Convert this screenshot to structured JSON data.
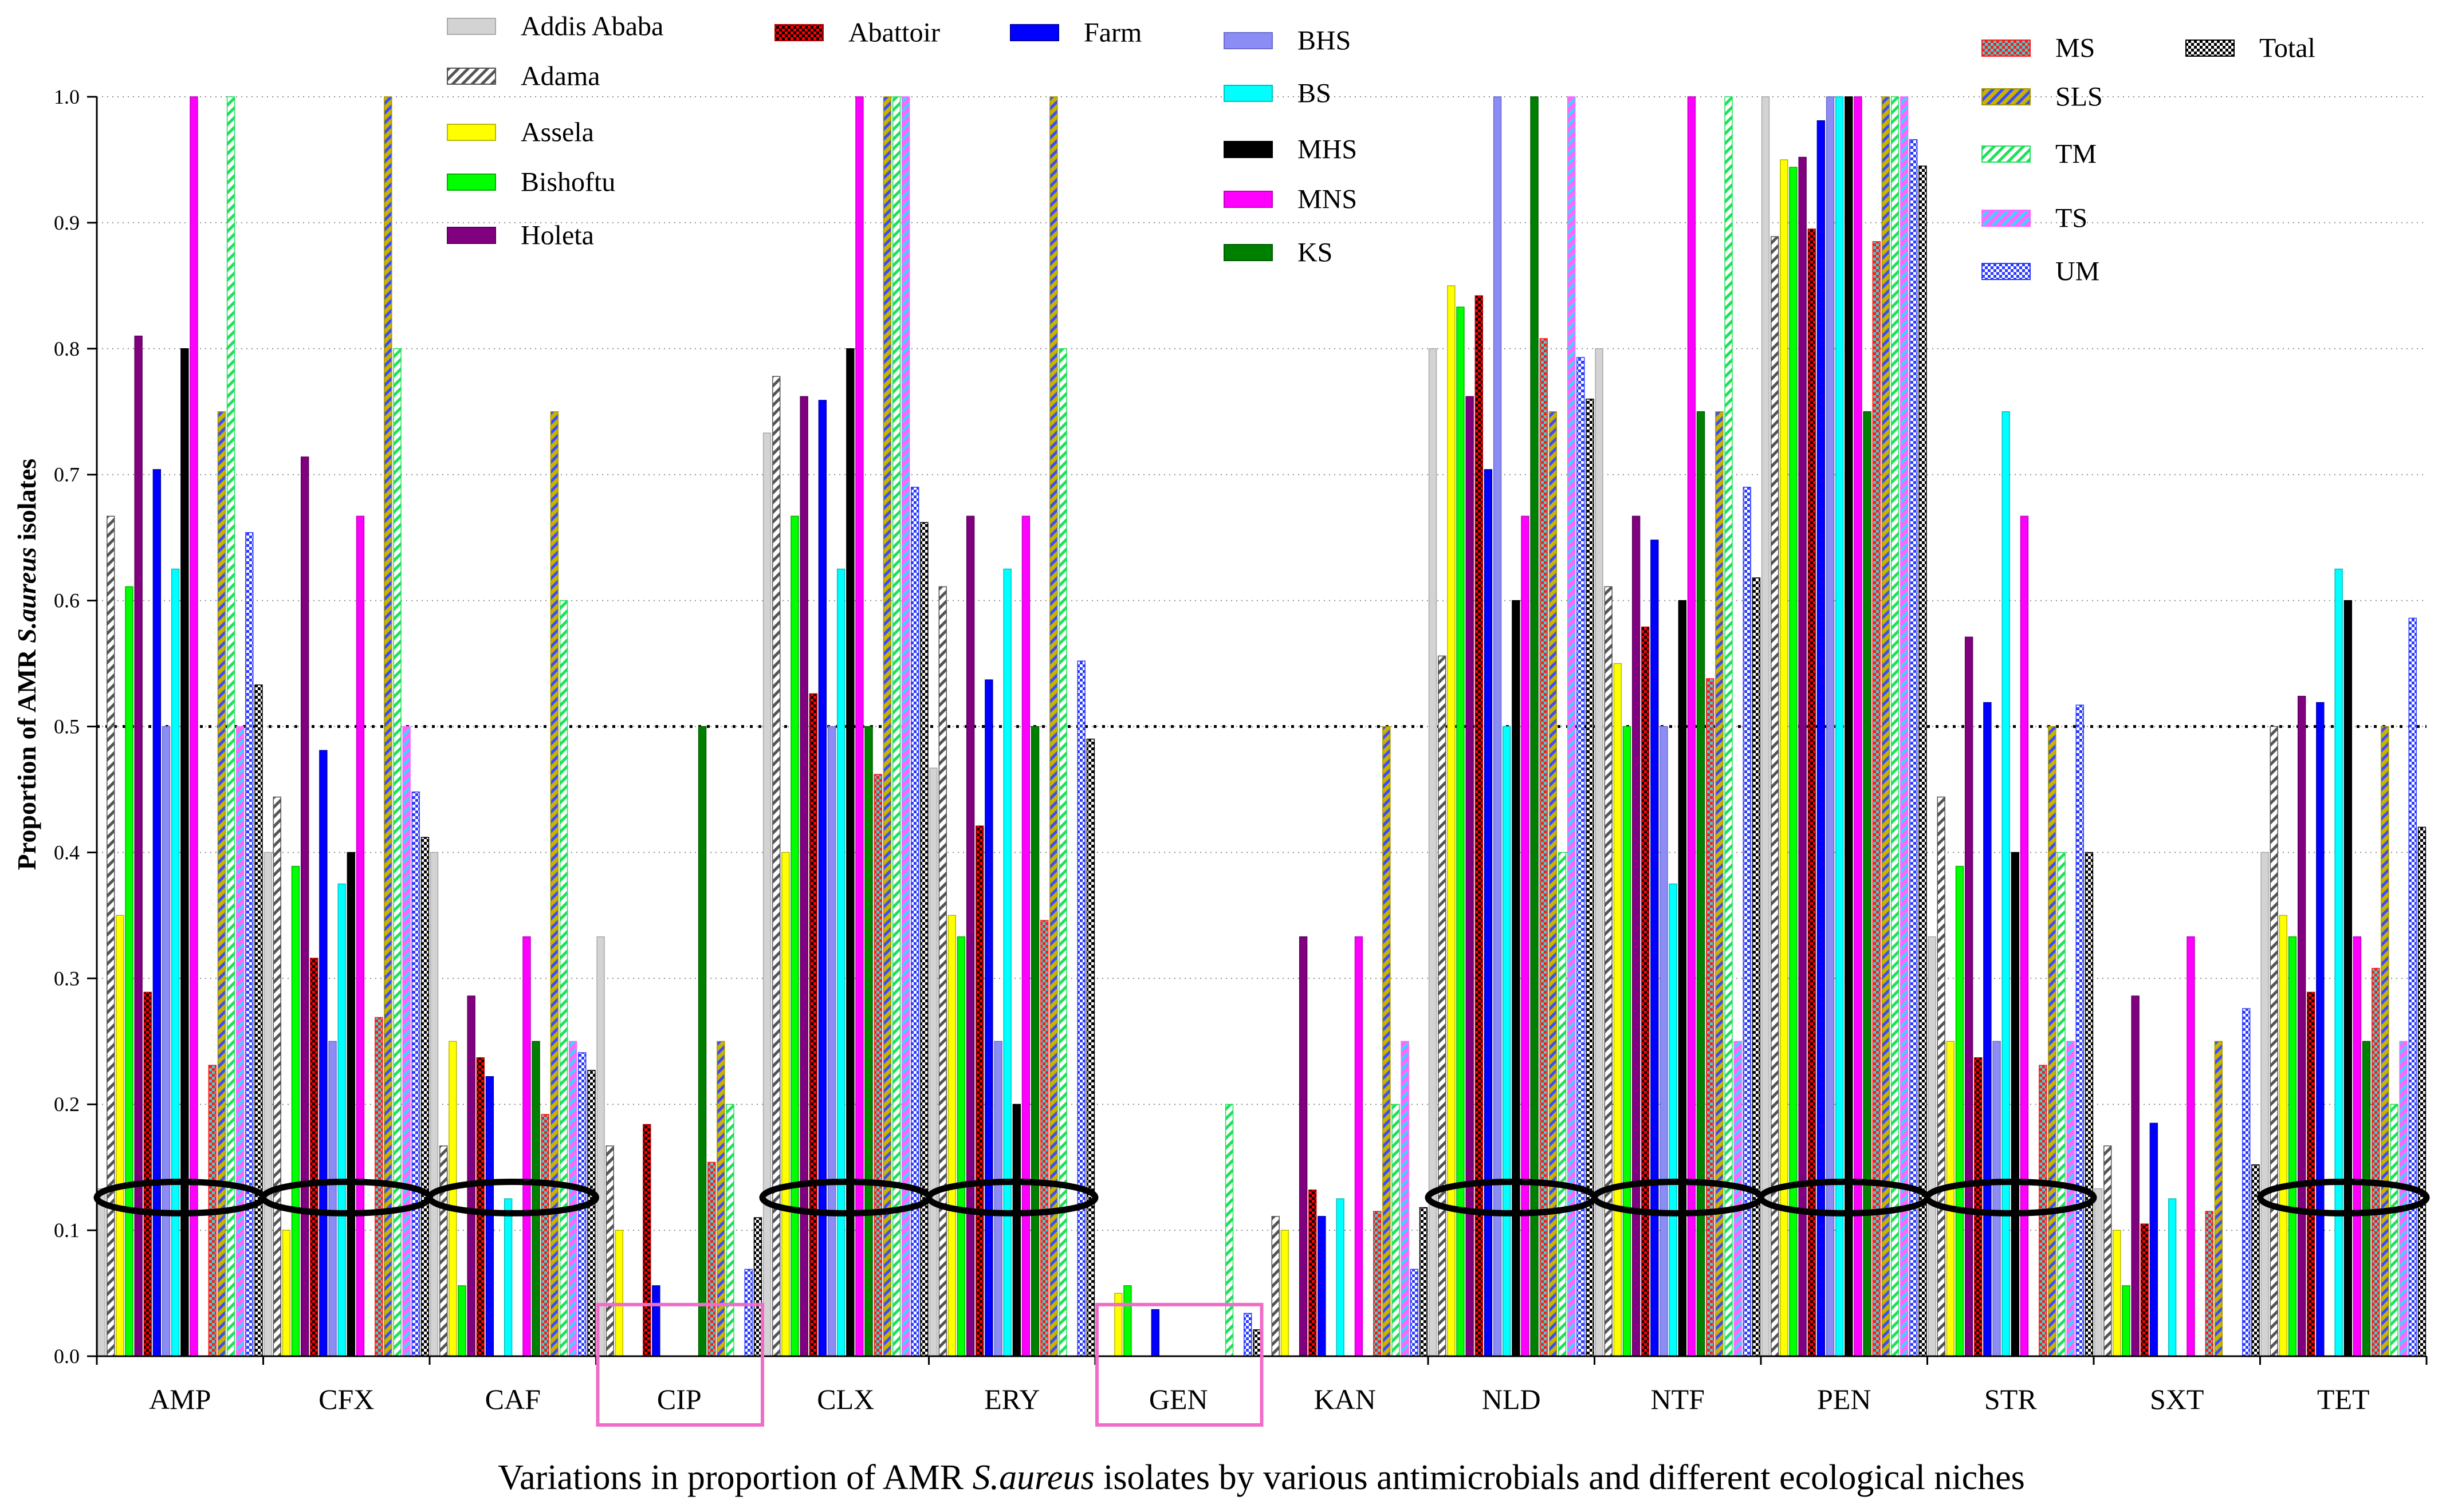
{
  "chart_data": {
    "type": "bar",
    "title_parts": [
      "Variations in proportion of AMR ",
      "S.aureus",
      " isolates by various antimicrobials and different ecological niches"
    ],
    "ylabel_parts": [
      "Proportion of AMR ",
      "S.aureus",
      " isolates"
    ],
    "xlabel": "",
    "ylim": [
      0,
      1.0
    ],
    "yticks": [
      "0.0",
      "0.1",
      "0.2",
      "0.3",
      "0.4",
      "0.5",
      "0.6",
      "0.7",
      "0.8",
      "0.9",
      "1.0"
    ],
    "grid": true,
    "legend_position": "top",
    "reference_line": 0.5,
    "categories": [
      "AMP",
      "CFX",
      "CAF",
      "CIP",
      "CLX",
      "ERY",
      "GEN",
      "KAN",
      "NLD",
      "NTF",
      "PEN",
      "STR",
      "SXT",
      "TET"
    ],
    "series": [
      {
        "name": "Addis Ababa",
        "color": "#d3d3d3",
        "edge": "#a9a9a9",
        "values": [
          0.133,
          0.4,
          0.4,
          0.333,
          0.733,
          0.467,
          0,
          0,
          0.8,
          0.8,
          1.0,
          0.333,
          0.133,
          0.4
        ]
      },
      {
        "name": "Adama",
        "color": "#ffffff",
        "hatch": "#555555",
        "edge": "#555555",
        "values": [
          0.667,
          0.444,
          0.167,
          0.167,
          0.778,
          0.611,
          0,
          0.111,
          0.556,
          0.611,
          0.889,
          0.444,
          0.167,
          0.5
        ]
      },
      {
        "name": "Assela",
        "color": "#ffff00",
        "edge": "#b8b800",
        "values": [
          0.35,
          0.1,
          0.25,
          0.1,
          0.4,
          0.35,
          0.05,
          0.1,
          0.85,
          0.55,
          0.95,
          0.25,
          0.1,
          0.35
        ]
      },
      {
        "name": "Bishoftu",
        "color": "#00ff00",
        "edge": "#00b000",
        "values": [
          0.611,
          0.389,
          0.056,
          0,
          0.667,
          0.333,
          0.056,
          0,
          0.833,
          0.5,
          0.944,
          0.389,
          0.056,
          0.333
        ]
      },
      {
        "name": "Holeta",
        "color": "#800080",
        "edge": "#5a005a",
        "values": [
          0.81,
          0.714,
          0.286,
          0,
          0.762,
          0.667,
          0,
          0.333,
          0.762,
          0.667,
          0.952,
          0.571,
          0.286,
          0.524
        ]
      },
      {
        "name": "Abattoir",
        "color": "#ff0000",
        "checker": "#000000",
        "edge": "#b00000",
        "values": [
          0.289,
          0.316,
          0.237,
          0.184,
          0.526,
          0.421,
          0,
          0.132,
          0.842,
          0.579,
          0.895,
          0.237,
          0.105,
          0.289
        ]
      },
      {
        "name": "Farm",
        "color": "#0000ff",
        "edge": "#0000b0",
        "values": [
          0.704,
          0.481,
          0.222,
          0.056,
          0.759,
          0.537,
          0.037,
          0.111,
          0.704,
          0.648,
          0.981,
          0.519,
          0.185,
          0.519
        ]
      },
      {
        "name": "BHS",
        "color": "#8c8cf5",
        "edge": "#6b6bd0",
        "values": [
          0.5,
          0.25,
          0,
          0,
          0.5,
          0.25,
          0,
          0,
          1.0,
          0.5,
          1.0,
          0.25,
          0,
          0
        ]
      },
      {
        "name": "BS",
        "color": "#00ffff",
        "edge": "#00c0c0",
        "values": [
          0.625,
          0.375,
          0.125,
          0,
          0.625,
          0.625,
          0,
          0.125,
          0.5,
          0.375,
          1.0,
          0.75,
          0.125,
          0.625
        ]
      },
      {
        "name": "MHS",
        "color": "#000000",
        "edge": "#000000",
        "values": [
          0.8,
          0.4,
          0,
          0,
          0.8,
          0.2,
          0,
          0,
          0.6,
          0.6,
          1.0,
          0.4,
          0,
          0.6
        ]
      },
      {
        "name": "MNS",
        "color": "#ff00ff",
        "edge": "#c000c0",
        "values": [
          1.0,
          0.667,
          0.333,
          0,
          1.0,
          0.667,
          0,
          0.333,
          0.667,
          1.0,
          1.0,
          0.667,
          0.333,
          0.333
        ]
      },
      {
        "name": "KS",
        "color": "#008000",
        "edge": "#005c00",
        "values": [
          0,
          0,
          0.25,
          0.5,
          0.5,
          0.5,
          0,
          0,
          1.0,
          0.75,
          0.75,
          0,
          0,
          0.25
        ]
      },
      {
        "name": "MS",
        "color": "#ff1a1a",
        "checker": "#40d0d0",
        "edge": "#ff1a1a",
        "values": [
          0.231,
          0.269,
          0.192,
          0.154,
          0.462,
          0.346,
          0,
          0.115,
          0.808,
          0.538,
          0.885,
          0.231,
          0.115,
          0.308
        ]
      },
      {
        "name": "SLS",
        "color": "#c8b400",
        "hatch": "#3b4cff",
        "edge": "#a89600",
        "values": [
          0.75,
          1.0,
          0.75,
          0.25,
          1.0,
          1.0,
          0,
          0.5,
          0.75,
          0.75,
          1.0,
          0.5,
          0.25,
          0.5
        ]
      },
      {
        "name": "TM",
        "color": "#ffffff",
        "hatch": "#1fe05a",
        "edge": "#1fe05a",
        "values": [
          1.0,
          0.8,
          0.6,
          0.2,
          1.0,
          0.8,
          0.2,
          0.2,
          0.4,
          1.0,
          1.0,
          0.4,
          0,
          0.2
        ]
      },
      {
        "name": "TS",
        "color": "#ff66ff",
        "hatch": "#3ad6ff",
        "edge": "#ff66ff",
        "values": [
          0.5,
          0.5,
          0.25,
          0,
          1.0,
          0,
          0,
          0.25,
          1.0,
          0.25,
          1.0,
          0.25,
          0,
          0.25
        ]
      },
      {
        "name": "UM",
        "color": "#ffffff",
        "checker": "#2b3bff",
        "edge": "#2b3bff",
        "values": [
          0.654,
          0.448,
          0.241,
          0.069,
          0.69,
          0.552,
          0.034,
          0.069,
          0.793,
          0.69,
          0.966,
          0.517,
          0.276,
          0.586
        ]
      },
      {
        "name": "Total",
        "color": "#ffffff",
        "checker": "#000000",
        "edge": "#000000",
        "values": [
          0.533,
          0.412,
          0.227,
          0.11,
          0.662,
          0.49,
          0.021,
          0.118,
          0.76,
          0.618,
          0.945,
          0.4,
          0.152,
          0.42
        ]
      }
    ],
    "annotations": {
      "circled": [
        true,
        true,
        true,
        false,
        true,
        true,
        false,
        false,
        true,
        true,
        true,
        true,
        false,
        true
      ],
      "circle_color": "#000000",
      "boxed": [
        false,
        false,
        false,
        true,
        false,
        false,
        true,
        false,
        false,
        false,
        false,
        false,
        false,
        false
      ],
      "box_color": "#f06cc8"
    }
  }
}
